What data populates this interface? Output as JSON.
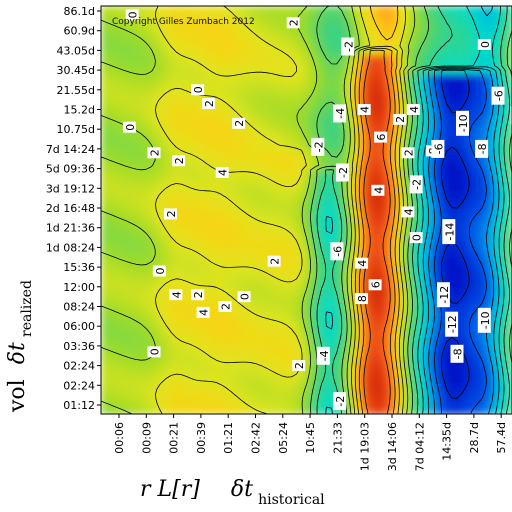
{
  "chart_data": {
    "type": "heatmap",
    "copyright": "Copyright Gilles Zumbach 2012",
    "x_ticks": [
      "00:06",
      "00:09",
      "00:21",
      "00:39",
      "01:21",
      "02:42",
      "05:24",
      "10:45",
      "21:33",
      "1d 19:03",
      "3d 14:06",
      "7d 04:12",
      "14:35d",
      "28.7d",
      "57.4d"
    ],
    "y_ticks": [
      "86.1d",
      "60.9d",
      "43.05d",
      "30.45d",
      "21.55d",
      "15.2d",
      "10.75d",
      "7d 14:24",
      "5d 09:36",
      "3d 19:12",
      "2d 16:48",
      "1d 21:36",
      "1d 08:24",
      "15:36",
      "12:00",
      "08:24",
      "06:00",
      "03:36",
      "02:24",
      "02:24",
      "01:12"
    ],
    "xlabel_main": "r L[r]",
    "xlabel_delta": "δt",
    "xlabel_sub": "historical",
    "ylabel_main": "vol",
    "ylabel_delta": "δt",
    "ylabel_sub": "realized",
    "contour_labels": [
      {
        "text": "0",
        "x": 0.5,
        "y": 19.8
      },
      {
        "text": "2",
        "x": 6.4,
        "y": 19.4
      },
      {
        "text": "0",
        "x": 0.4,
        "y": 14.1
      },
      {
        "text": "2",
        "x": 1.3,
        "y": 12.8
      },
      {
        "text": "2",
        "x": 2.2,
        "y": 12.4
      },
      {
        "text": "0",
        "x": 2.9,
        "y": 16.0
      },
      {
        "text": "2",
        "x": 3.3,
        "y": 15.3
      },
      {
        "text": "2",
        "x": 4.4,
        "y": 14.3
      },
      {
        "text": "4",
        "x": 3.8,
        "y": 11.8
      },
      {
        "text": "2",
        "x": 1.9,
        "y": 9.7
      },
      {
        "text": "0",
        "x": 1.5,
        "y": 6.8
      },
      {
        "text": "4",
        "x": 2.1,
        "y": 5.6
      },
      {
        "text": "2",
        "x": 2.9,
        "y": 5.6
      },
      {
        "text": "4",
        "x": 3.1,
        "y": 4.7
      },
      {
        "text": "2",
        "x": 3.9,
        "y": 5.0
      },
      {
        "text": "0",
        "x": 4.6,
        "y": 5.5
      },
      {
        "text": "2",
        "x": 5.7,
        "y": 7.3
      },
      {
        "text": "2",
        "x": 6.6,
        "y": 2.0
      },
      {
        "text": "0",
        "x": 1.3,
        "y": 2.7
      },
      {
        "text": "-2",
        "x": 7.3,
        "y": 13.1
      },
      {
        "text": "-4",
        "x": 8.1,
        "y": 14.8
      },
      {
        "text": "-2",
        "x": 8.2,
        "y": 11.8
      },
      {
        "text": "-6",
        "x": 8.0,
        "y": 7.8
      },
      {
        "text": "-4",
        "x": 7.5,
        "y": 2.5
      },
      {
        "text": "-2",
        "x": 8.1,
        "y": 0.2
      },
      {
        "text": "-2",
        "x": 8.4,
        "y": 18.2
      },
      {
        "text": "4",
        "x": 9.0,
        "y": 15.0
      },
      {
        "text": "6",
        "x": 9.6,
        "y": 13.6
      },
      {
        "text": "2",
        "x": 10.3,
        "y": 14.5
      },
      {
        "text": "4",
        "x": 10.8,
        "y": 15.0
      },
      {
        "text": "2",
        "x": 10.6,
        "y": 12.8
      },
      {
        "text": "-2",
        "x": 10.9,
        "y": 11.2
      },
      {
        "text": "4",
        "x": 9.5,
        "y": 10.9
      },
      {
        "text": "4",
        "x": 10.6,
        "y": 9.8
      },
      {
        "text": "0",
        "x": 10.9,
        "y": 8.5
      },
      {
        "text": "4",
        "x": 8.9,
        "y": 7.2
      },
      {
        "text": "8",
        "x": 8.9,
        "y": 5.4
      },
      {
        "text": "6",
        "x": 9.4,
        "y": 6.1
      },
      {
        "text": "8",
        "x": 11.5,
        "y": 12.9
      },
      {
        "text": "-6",
        "x": 11.7,
        "y": 13.0
      },
      {
        "text": "-10",
        "x": 12.6,
        "y": 14.3
      },
      {
        "text": "-8",
        "x": 13.3,
        "y": 13.0
      },
      {
        "text": "-14",
        "x": 12.1,
        "y": 8.8
      },
      {
        "text": "-12",
        "x": 11.9,
        "y": 5.6
      },
      {
        "text": "-12",
        "x": 12.2,
        "y": 4.1
      },
      {
        "text": "-8",
        "x": 12.4,
        "y": 2.6
      },
      {
        "text": "-10",
        "x": 13.4,
        "y": 4.3
      },
      {
        "text": "-6",
        "x": 13.9,
        "y": 15.7
      },
      {
        "text": "-2",
        "x": 14.6,
        "y": 14.7
      },
      {
        "text": "-4",
        "x": 14.8,
        "y": 10.5
      },
      {
        "text": "0",
        "x": 13.4,
        "y": 18.3
      }
    ]
  }
}
